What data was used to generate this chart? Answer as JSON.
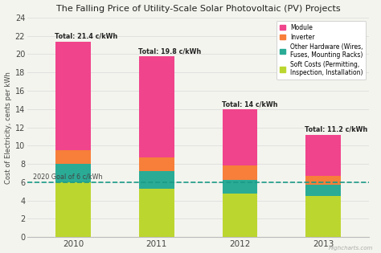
{
  "title": "The Falling Price of Utility-Scale Solar Photovoltaic (PV) Projects",
  "ylabel": "Cost of Electricity, cents per kWh",
  "years": [
    "2010",
    "2011",
    "2012",
    "2013"
  ],
  "totals": [
    "Total: 21.4 c/kWh",
    "Total: 19.8 c/kWh",
    "Total: 14 c/kWh",
    "Total: 11.2 c/kWh"
  ],
  "soft_costs": [
    6.0,
    5.3,
    4.8,
    4.5
  ],
  "other_hardware": [
    2.0,
    1.9,
    1.5,
    1.2
  ],
  "inverter": [
    1.5,
    1.5,
    1.5,
    1.0
  ],
  "module": [
    11.9,
    11.1,
    6.2,
    4.5
  ],
  "colors": {
    "module": "#f0448c",
    "inverter": "#f77f3a",
    "other_hardware": "#2aab96",
    "soft_costs": "#bcd630"
  },
  "goal_value": 6.0,
  "goal_label": "2020 Goal of 6 c/kWh",
  "goal_color": "#1a9b87",
  "ylim": [
    0,
    24
  ],
  "yticks": [
    0,
    2,
    4,
    6,
    8,
    10,
    12,
    14,
    16,
    18,
    20,
    22,
    24
  ],
  "background_color": "#f4f4ee",
  "grid_color": "#e0e0e0",
  "bar_width": 0.42,
  "watermark": "Highcharts.com"
}
